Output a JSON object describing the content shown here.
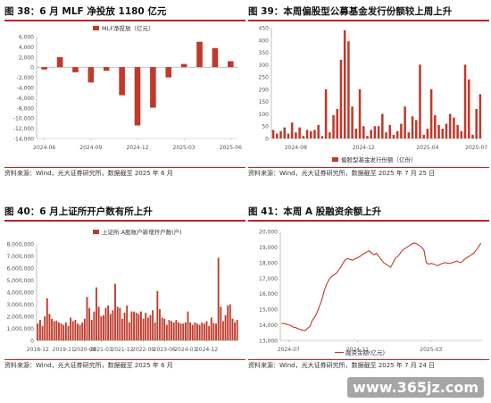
{
  "panels": [
    {
      "title": "图 38：6 月 MLF 净投放 1180 亿元",
      "source": "资料来源：Wind，光大证券研究所，数据截至 2025 年 6 月"
    },
    {
      "title": "图 39：本周偏股型公募基金发行份额较上周上升",
      "source": "资料来源：Wind，光大证券研究所，数据截至 2025 年 7 月 25 日"
    },
    {
      "title": "图 40：6 月上证所开户数有所上升",
      "source": "资料来源：Wind，光大证券研究所，数据截至 2025 年 6 月"
    },
    {
      "title": "图 41：本周 A 股融资余额上升",
      "source": "资料来源：Wind，光大证券研究所，数据截至 2025 年 7 月 24 日"
    }
  ],
  "watermark": "www.365jz.com",
  "chart_data": [
    {
      "type": "bar",
      "color": "#c0392b",
      "legend_label": "MLF净投放（亿元）",
      "legend_position": "top-center",
      "ylim": [
        -14000,
        6000
      ],
      "y_ticks": [
        6000,
        4000,
        2000,
        0,
        -2000,
        -4000,
        -6000,
        -8000,
        -10000,
        -12000,
        -14000
      ],
      "y_tick_labels": [
        "6,000",
        "4,000",
        "2,000",
        "0",
        "-2,000",
        "-4,000",
        "-6,000",
        "-8,000",
        "-10,000",
        "-12,000",
        "-14,000"
      ],
      "x_tick_labels": [
        "2024-06",
        "2024-09",
        "2024-12",
        "2025-03",
        "2025-06"
      ],
      "x_tick_index": [
        0,
        3,
        6,
        9,
        12
      ],
      "categories": [
        "2024-06",
        "2024-07",
        "2024-08",
        "2024-09",
        "2024-10",
        "2024-11",
        "2024-12",
        "2025-01",
        "2025-02",
        "2025-03",
        "2025-04",
        "2025-05",
        "2025-06"
      ],
      "values": [
        -450,
        1960,
        -1000,
        -3000,
        -700,
        -5500,
        -11450,
        -7950,
        -2000,
        630,
        5000,
        3750,
        1180
      ]
    },
    {
      "type": "bar",
      "color": "#c0392b",
      "legend_label": "偏股型基金发行份额（亿份）",
      "legend_position": "bottom-center",
      "ylim": [
        0,
        450
      ],
      "y_ticks": [
        0,
        50,
        100,
        150,
        200,
        250,
        300,
        350,
        400,
        450
      ],
      "y_tick_labels": [
        "0",
        "50",
        "100",
        "150",
        "200",
        "250",
        "300",
        "350",
        "400",
        "450"
      ],
      "x_tick_labels": [
        "2024-08",
        "2024-12",
        "2025-04",
        "2025-07"
      ],
      "x_tick_index": [
        6,
        24,
        41,
        54
      ],
      "values": [
        35,
        20,
        30,
        45,
        20,
        65,
        25,
        45,
        10,
        35,
        30,
        35,
        55,
        10,
        200,
        25,
        95,
        120,
        320,
        440,
        395,
        130,
        40,
        200,
        50,
        10,
        35,
        50,
        50,
        100,
        25,
        55,
        15,
        30,
        60,
        130,
        25,
        90,
        75,
        300,
        15,
        40,
        200,
        95,
        55,
        40,
        60,
        100,
        85,
        55,
        30,
        300,
        240,
        15,
        120,
        180
      ]
    },
    {
      "type": "bar",
      "color": "#c0392b",
      "legend_label": "上证所:A股账户新增开户数(户)",
      "legend_position": "top-center",
      "ylim": [
        0,
        8000000
      ],
      "y_ticks": [
        0,
        1000000,
        2000000,
        3000000,
        4000000,
        5000000,
        6000000,
        7000000,
        8000000
      ],
      "y_tick_labels": [
        "0",
        "1,000,000",
        "2,000,000",
        "3,000,000",
        "4,000,000",
        "5,000,000",
        "6,000,000",
        "7,000,000",
        "8,000,000"
      ],
      "x_tick_labels": [
        "2018-12",
        "2019-11",
        "2020-08",
        "2021-03",
        "2021-12",
        "2022-09",
        "2023-06",
        "2024-03",
        "2024-12"
      ],
      "x_tick_index": [
        0,
        11,
        20,
        27,
        36,
        45,
        54,
        63,
        72
      ],
      "values": [
        1400000,
        1700000,
        1200000,
        2000000,
        3500000,
        2200000,
        1800000,
        1600000,
        1650000,
        1500000,
        1400000,
        1300000,
        1500000,
        1200000,
        1900000,
        1600000,
        1700000,
        1400000,
        1300000,
        1500000,
        1800000,
        3600000,
        2700000,
        1700000,
        2400000,
        4400000,
        2800000,
        2000000,
        2100000,
        2700000,
        2900000,
        2200000,
        2500000,
        4700000,
        2800000,
        2700000,
        1800000,
        2300000,
        2900000,
        1500000,
        2400000,
        2400000,
        2300000,
        2200000,
        2400000,
        1800000,
        2300000,
        1900000,
        2100000,
        2500000,
        1500000,
        4100000,
        2600000,
        1900000,
        1800000,
        1300000,
        1700000,
        1600000,
        1500000,
        1700000,
        1500000,
        1400000,
        1400000,
        1500000,
        2400000,
        1500000,
        1300000,
        1500000,
        1400000,
        1300000,
        1500000,
        1400000,
        1600000,
        1200000,
        1900000,
        1450000,
        1400000,
        6850000,
        2800000,
        1600000,
        2100000,
        2900000,
        3000000,
        1800000,
        1500000,
        1700000
      ]
    },
    {
      "type": "line",
      "color": "#c0392b",
      "legend_label": "融资余额(亿元)",
      "legend_position": "bottom-center",
      "ylim": [
        13000,
        20000
      ],
      "y_ticks": [
        13000,
        14000,
        15000,
        16000,
        17000,
        18000,
        19000,
        20000
      ],
      "y_tick_labels": [
        "13,000",
        "14,000",
        "15,000",
        "16,000",
        "17,000",
        "18,000",
        "19,000",
        "20,000"
      ],
      "x_tick_labels": [
        "2024-07",
        "2024-11",
        "2025-03"
      ],
      "x_tick_index": [
        3,
        32,
        63
      ],
      "values": [
        14080,
        14100,
        14050,
        14000,
        13950,
        13850,
        13820,
        13750,
        13700,
        13650,
        13640,
        13780,
        13900,
        14300,
        14500,
        14800,
        15200,
        15600,
        16200,
        16600,
        16900,
        17100,
        17200,
        17300,
        17500,
        17700,
        18000,
        18200,
        18250,
        18200,
        18150,
        18250,
        18300,
        18400,
        18500,
        18600,
        18700,
        18750,
        18600,
        18500,
        18600,
        18400,
        18200,
        18000,
        17900,
        17800,
        17700,
        18000,
        18300,
        18400,
        18600,
        18800,
        18900,
        19000,
        19100,
        19200,
        19250,
        19200,
        19100,
        19000,
        18800,
        18000,
        17900,
        17950,
        17900,
        17850,
        17800,
        17900,
        17950,
        18000,
        17950,
        17950,
        18000,
        18050,
        18100,
        18000,
        18050,
        18200,
        18300,
        18400,
        18500,
        18600,
        18800,
        19000,
        19250
      ]
    }
  ]
}
